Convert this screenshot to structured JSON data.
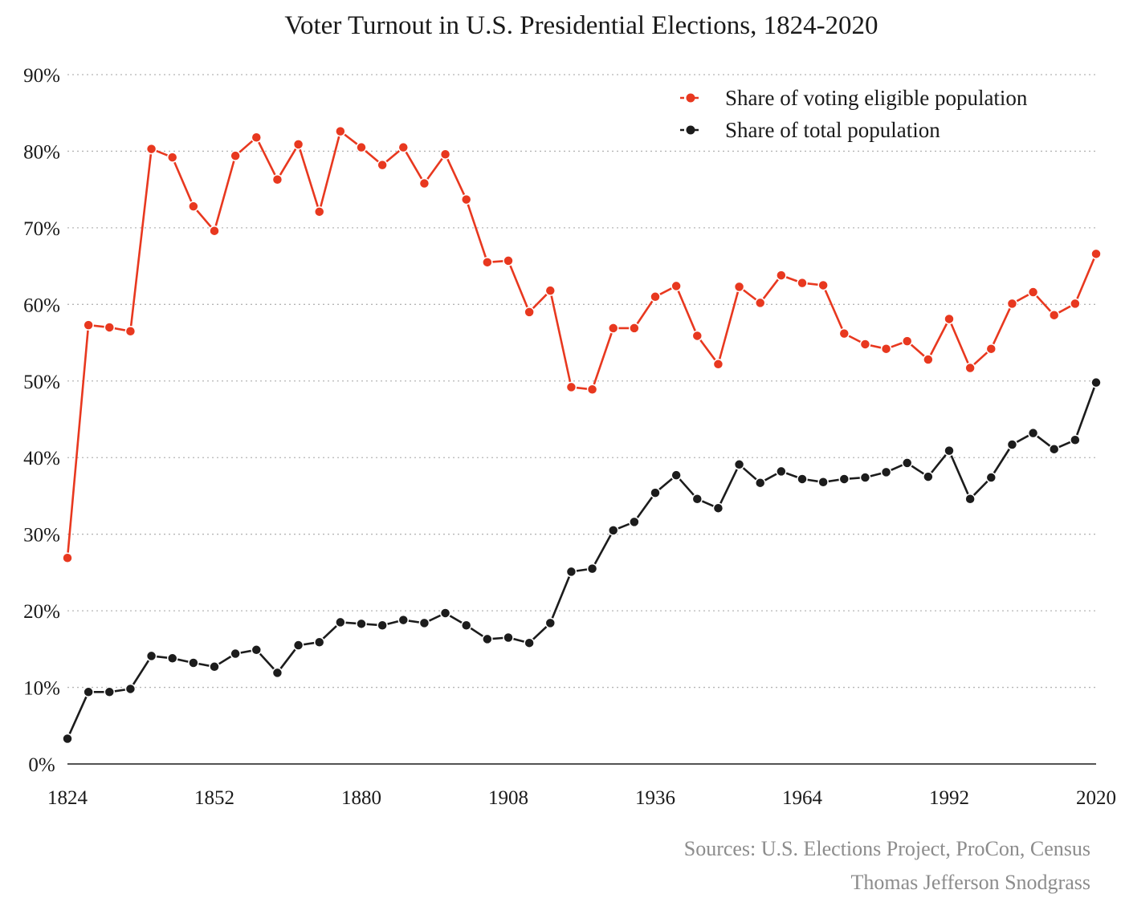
{
  "chart_data": {
    "type": "line",
    "title": "Voter Turnout in U.S. Presidential Elections, 1824-2020",
    "xlabel": "",
    "ylabel": "",
    "xlim": [
      1824,
      2020
    ],
    "ylim": [
      0,
      90
    ],
    "x_ticks": [
      1824,
      1852,
      1880,
      1908,
      1936,
      1964,
      1992,
      2020
    ],
    "y_ticks": [
      0,
      10,
      20,
      30,
      40,
      50,
      60,
      70,
      80,
      90
    ],
    "y_tick_labels": [
      "0%",
      "10%",
      "20%",
      "30%",
      "40%",
      "50%",
      "60%",
      "70%",
      "80%",
      "90%"
    ],
    "grid": "horizontal dotted",
    "legend_position": "top-right",
    "x": [
      1824,
      1828,
      1832,
      1836,
      1840,
      1844,
      1848,
      1852,
      1856,
      1860,
      1864,
      1868,
      1872,
      1876,
      1880,
      1884,
      1888,
      1892,
      1896,
      1900,
      1904,
      1908,
      1912,
      1916,
      1920,
      1924,
      1928,
      1932,
      1936,
      1940,
      1944,
      1948,
      1952,
      1956,
      1960,
      1964,
      1968,
      1972,
      1976,
      1980,
      1984,
      1988,
      1992,
      1996,
      2000,
      2004,
      2008,
      2012,
      2016,
      2020
    ],
    "series": [
      {
        "name": "Share of voting eligible population",
        "color": "#e8381f",
        "values": [
          26.9,
          57.3,
          57.0,
          56.5,
          80.3,
          79.2,
          72.8,
          69.6,
          79.4,
          81.8,
          76.3,
          80.9,
          72.1,
          82.6,
          80.5,
          78.2,
          80.5,
          75.8,
          79.6,
          73.7,
          65.5,
          65.7,
          59.0,
          61.8,
          49.2,
          48.9,
          56.9,
          56.9,
          61.0,
          62.4,
          55.9,
          52.2,
          62.3,
          60.2,
          63.8,
          62.8,
          62.5,
          56.2,
          54.8,
          54.2,
          55.2,
          52.8,
          58.1,
          51.7,
          54.2,
          60.1,
          61.6,
          58.6,
          60.1,
          66.6
        ]
      },
      {
        "name": "Share of total population",
        "color": "#1c1c1c",
        "values": [
          3.3,
          9.4,
          9.4,
          9.8,
          14.1,
          13.8,
          13.2,
          12.7,
          14.4,
          14.9,
          11.9,
          15.5,
          15.9,
          18.5,
          18.3,
          18.1,
          18.8,
          18.4,
          19.7,
          18.1,
          16.3,
          16.5,
          15.8,
          18.4,
          25.1,
          25.5,
          30.5,
          31.6,
          35.4,
          37.7,
          34.6,
          33.4,
          39.1,
          36.7,
          38.2,
          37.2,
          36.8,
          37.2,
          37.4,
          38.1,
          39.3,
          37.5,
          40.9,
          34.6,
          37.4,
          41.7,
          43.2,
          41.1,
          42.3,
          49.8
        ]
      }
    ],
    "annotations": [
      "Sources: U.S. Elections Project, ProCon, Census",
      "Thomas Jefferson Snodgrass"
    ]
  }
}
